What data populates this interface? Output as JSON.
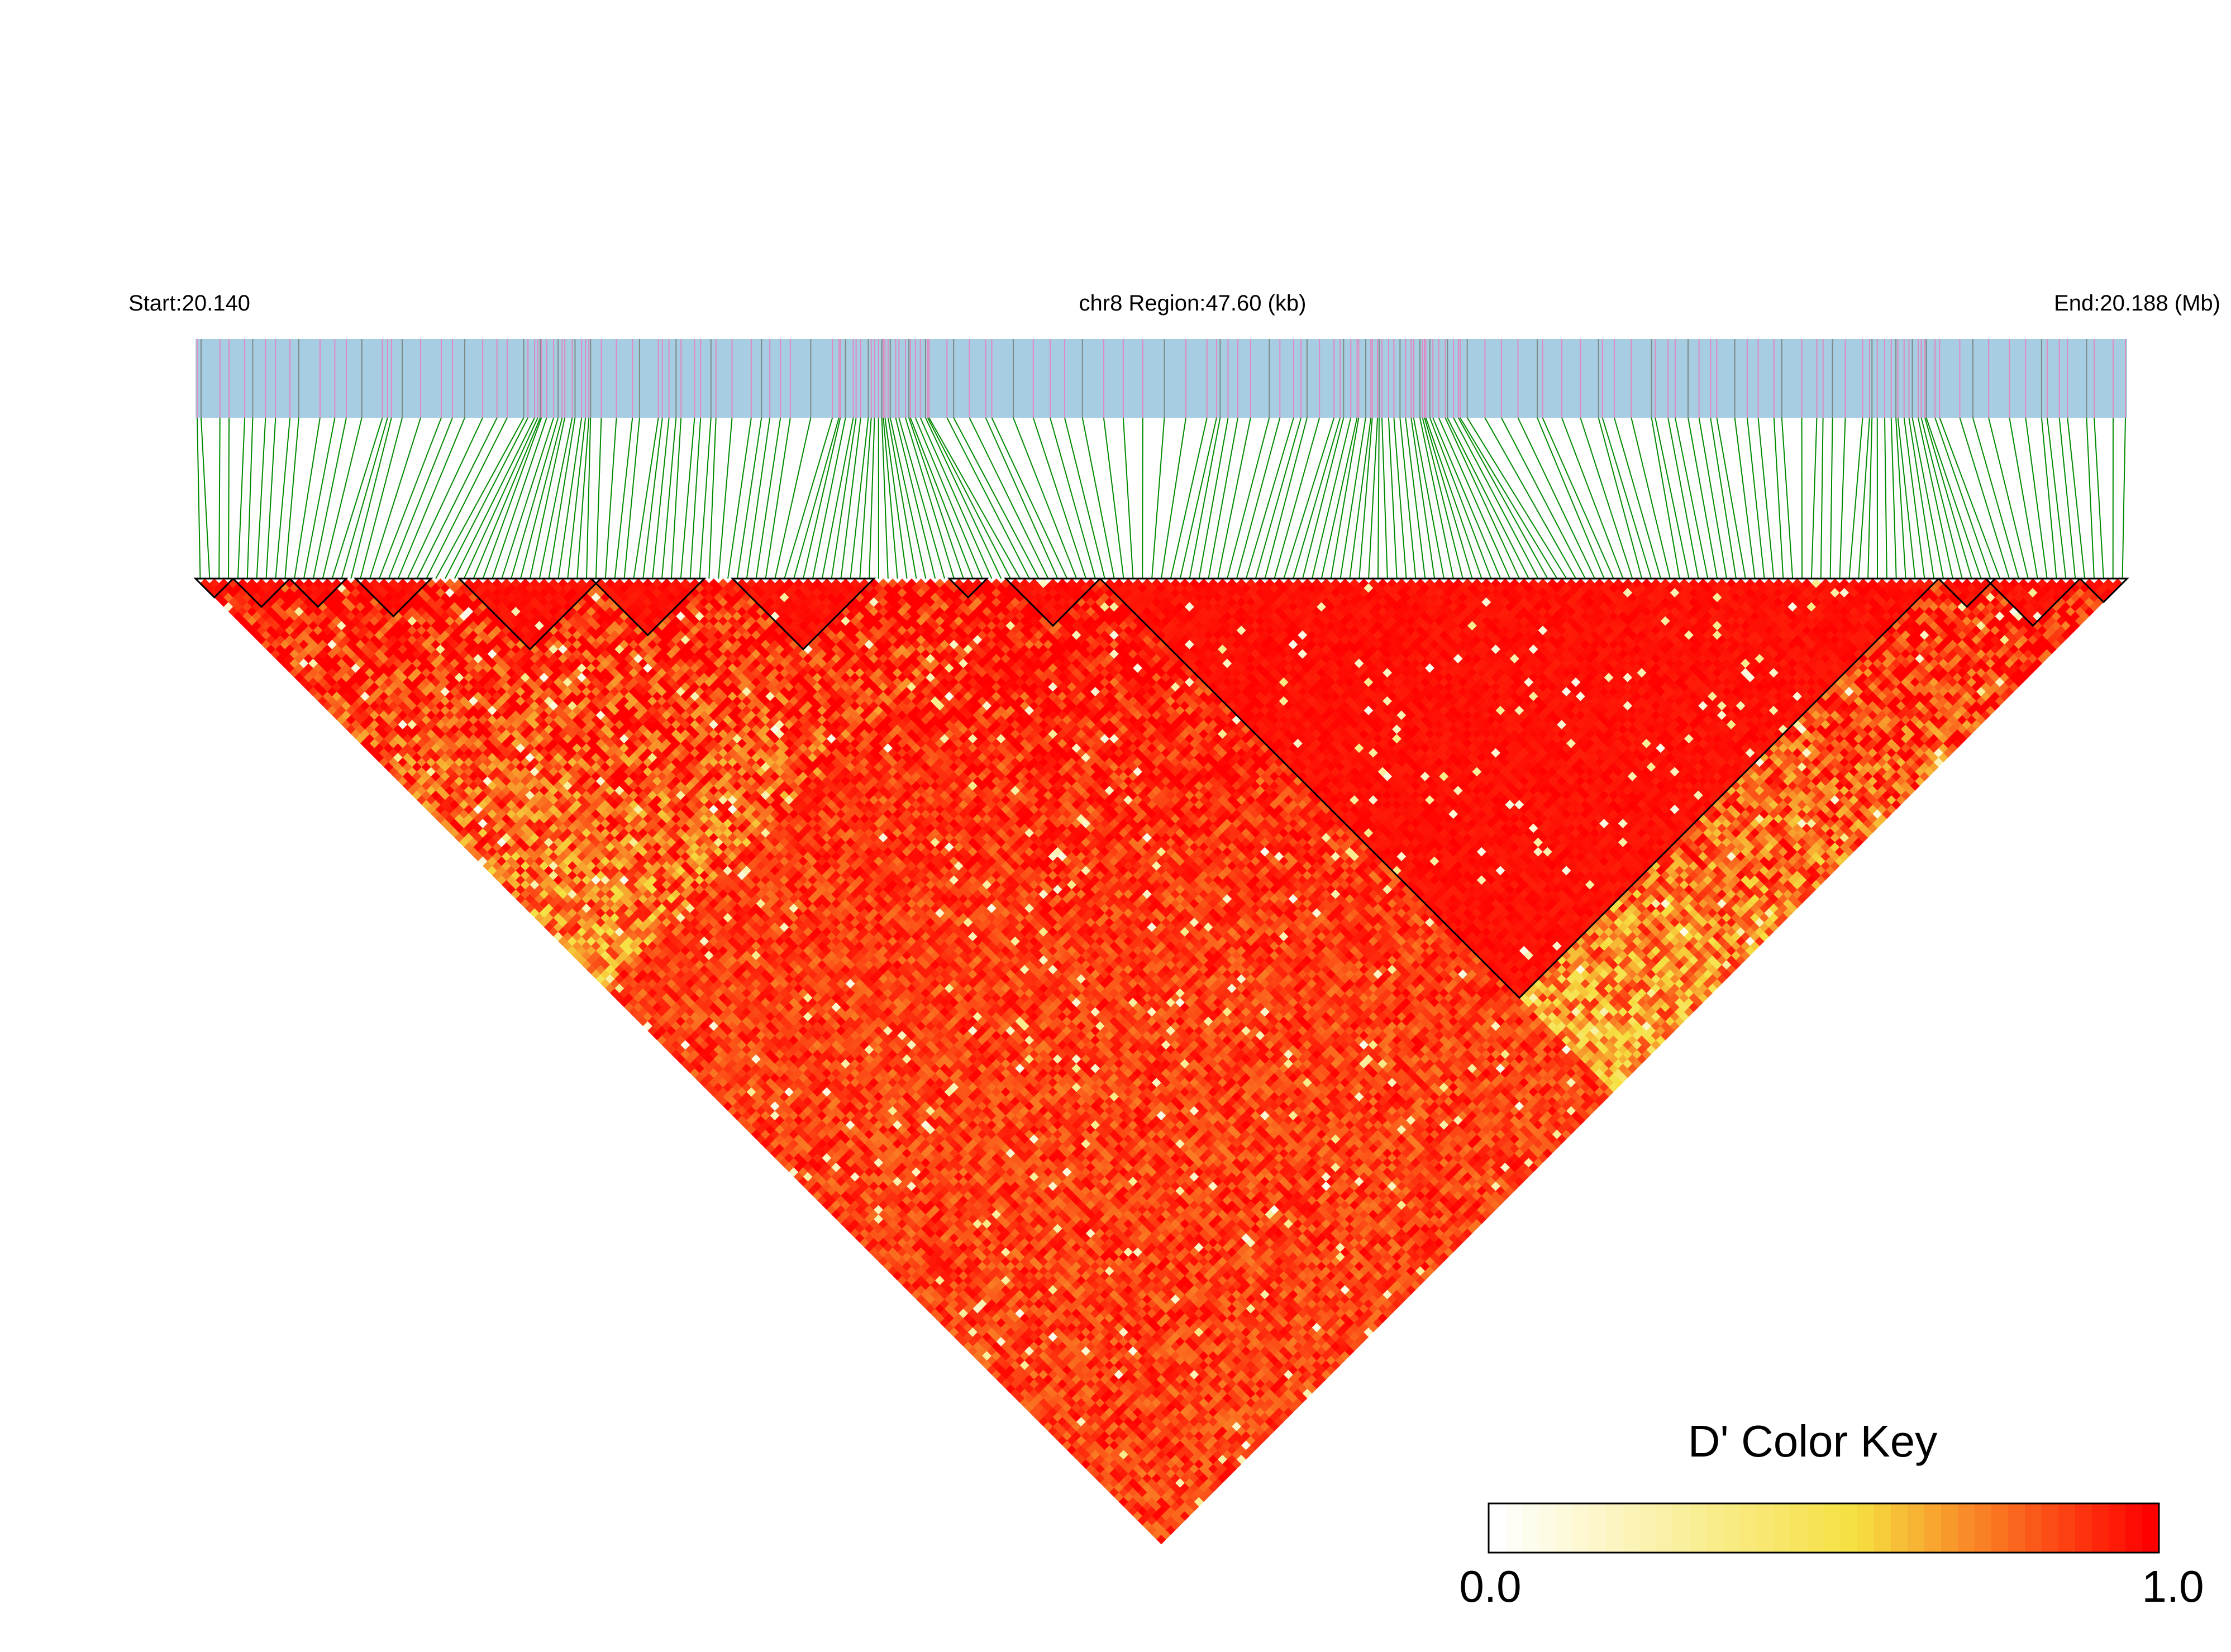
{
  "chart_data": {
    "type": "heatmap",
    "subtype": "linkage-disequilibrium-triangle",
    "header": {
      "start_label": "Start:20.140",
      "region_label": "chr8 Region:47.60 (kb)",
      "end_label": "End:20.188 (Mb)"
    },
    "region_mb": [
      20.14,
      20.188
    ],
    "region_kb": 47.6,
    "snp_count": 205,
    "block_ranges": [
      [
        0,
        3
      ],
      [
        4,
        9
      ],
      [
        10,
        15
      ],
      [
        17,
        24
      ],
      [
        28,
        42
      ],
      [
        42,
        53
      ],
      [
        57,
        71
      ],
      [
        80,
        83
      ],
      [
        86,
        95
      ],
      [
        96,
        184
      ],
      [
        185,
        190
      ],
      [
        190,
        199
      ],
      [
        200,
        204
      ]
    ],
    "legend": {
      "title": "D' Color Key",
      "min_label": "0.0",
      "max_label": "1.0",
      "range": [
        0.0,
        1.0
      ]
    },
    "colors": {
      "track_bg": "#a6cde2",
      "track_tick_pink": "#e189c0",
      "track_tick_gray": "#7e8a86",
      "connector": "#008a00",
      "high": "#ff0000",
      "mid": "#f5e040",
      "low": "#ffffff",
      "block_outline": "#000000"
    }
  }
}
